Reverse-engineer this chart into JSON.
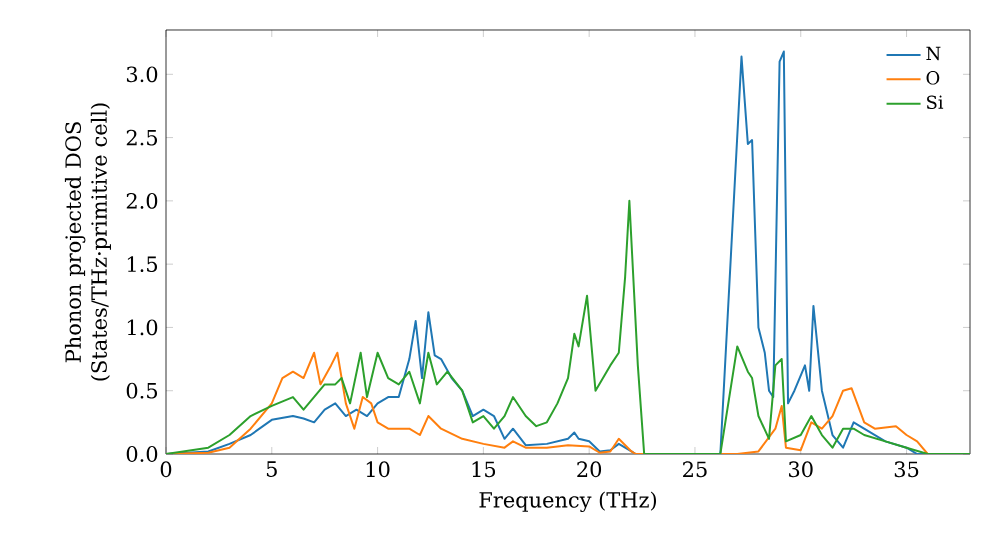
{
  "chart_data": {
    "type": "line",
    "xlabel": "Frequency (THz)",
    "ylabel": "Phonon projected DOS (States/THz·primitive cell)",
    "xlim": [
      0,
      38
    ],
    "ylim": [
      0,
      3.35
    ],
    "xticks": [
      0,
      5,
      10,
      15,
      20,
      25,
      30,
      35
    ],
    "yticks": [
      {
        "value": 0,
        "label": "0.0"
      },
      {
        "value": 0.5,
        "label": "0.5"
      },
      {
        "value": 1,
        "label": "1.0"
      },
      {
        "value": 1.5,
        "label": "1.5"
      },
      {
        "value": 2,
        "label": "2.0"
      },
      {
        "value": 2.5,
        "label": "2.5"
      },
      {
        "value": 3,
        "label": "3.0"
      }
    ],
    "grid": false,
    "legend": "top right",
    "marker": "none",
    "line_style": "solid",
    "series": [
      {
        "name": "N",
        "color": "#1f77b4",
        "x": [
          0,
          2,
          3,
          4,
          5,
          6,
          6.5,
          7,
          7.5,
          8,
          8.5,
          9,
          9.5,
          10,
          10.5,
          11,
          11.5,
          11.8,
          12.1,
          12.4,
          12.7,
          13,
          13.5,
          14,
          14.5,
          15,
          15.5,
          16,
          16.4,
          17,
          18,
          19,
          19.3,
          19.5,
          20,
          20.5,
          21,
          21.4,
          22,
          22.2,
          26.2,
          27.2,
          27.5,
          27.7,
          28,
          28.3,
          28.5,
          28.7,
          29,
          29.2,
          29.4,
          29.7,
          30.2,
          30.4,
          30.6,
          31,
          31.5,
          32,
          32.5,
          33,
          34,
          35,
          35.5,
          38
        ],
        "values": [
          0,
          0.02,
          0.08,
          0.15,
          0.27,
          0.3,
          0.28,
          0.25,
          0.35,
          0.4,
          0.3,
          0.35,
          0.3,
          0.4,
          0.45,
          0.45,
          0.75,
          1.05,
          0.6,
          1.12,
          0.78,
          0.75,
          0.6,
          0.5,
          0.3,
          0.35,
          0.3,
          0.12,
          0.2,
          0.07,
          0.08,
          0.12,
          0.17,
          0.12,
          0.1,
          0.02,
          0.03,
          0.08,
          0.02,
          0,
          0,
          3.14,
          2.45,
          2.48,
          1.0,
          0.8,
          0.5,
          0.45,
          3.1,
          3.18,
          0.4,
          0.5,
          0.7,
          0.5,
          1.17,
          0.5,
          0.15,
          0.05,
          0.25,
          0.2,
          0.1,
          0.05,
          0,
          0
        ]
      },
      {
        "name": "O",
        "color": "#ff7f0e",
        "x": [
          0,
          2,
          3,
          4,
          5,
          5.5,
          6,
          6.5,
          7,
          7.3,
          7.8,
          8.1,
          8.5,
          8.9,
          9.3,
          9.7,
          10,
          10.5,
          11,
          11.5,
          12,
          12.4,
          13,
          14,
          15,
          16,
          16.4,
          17,
          18,
          19,
          20,
          20.5,
          21,
          21.4,
          22,
          22.2,
          27,
          28,
          28.8,
          29.1,
          29.3,
          30,
          30.5,
          31,
          31.5,
          32,
          32.4,
          33,
          33.5,
          34.5,
          35,
          35.5,
          36,
          38
        ],
        "values": [
          0,
          0.01,
          0.05,
          0.2,
          0.4,
          0.6,
          0.65,
          0.6,
          0.8,
          0.55,
          0.7,
          0.8,
          0.4,
          0.2,
          0.45,
          0.4,
          0.25,
          0.2,
          0.2,
          0.2,
          0.15,
          0.3,
          0.2,
          0.12,
          0.08,
          0.05,
          0.1,
          0.05,
          0.05,
          0.07,
          0.06,
          0.01,
          0.02,
          0.12,
          0.02,
          0,
          0,
          0.02,
          0.2,
          0.38,
          0.05,
          0.03,
          0.25,
          0.2,
          0.3,
          0.5,
          0.52,
          0.25,
          0.2,
          0.22,
          0.15,
          0.1,
          0,
          0
        ]
      },
      {
        "name": "Si",
        "color": "#2ca02c",
        "x": [
          0,
          2,
          3,
          4,
          5,
          6,
          6.5,
          7,
          7.5,
          8,
          8.3,
          8.7,
          9.2,
          9.5,
          10,
          10.5,
          11,
          11.5,
          12,
          12.4,
          12.8,
          13.3,
          14,
          14.5,
          15,
          15.5,
          16,
          16.4,
          17,
          17.5,
          18,
          18.5,
          19,
          19.3,
          19.5,
          19.9,
          20.3,
          21,
          21.4,
          21.7,
          21.9,
          22.3,
          22.6,
          26.2,
          27,
          27.5,
          27.7,
          28,
          28.5,
          28.8,
          29.1,
          29.3,
          30,
          30.5,
          31,
          31.5,
          32,
          32.5,
          33,
          34,
          35,
          36,
          38
        ],
        "values": [
          0,
          0.05,
          0.15,
          0.3,
          0.38,
          0.45,
          0.35,
          0.45,
          0.55,
          0.55,
          0.6,
          0.4,
          0.8,
          0.45,
          0.8,
          0.6,
          0.55,
          0.65,
          0.4,
          0.8,
          0.55,
          0.65,
          0.5,
          0.25,
          0.3,
          0.2,
          0.3,
          0.45,
          0.3,
          0.22,
          0.25,
          0.4,
          0.6,
          0.95,
          0.85,
          1.25,
          0.5,
          0.7,
          0.8,
          1.4,
          2.0,
          0.7,
          0,
          0,
          0.85,
          0.65,
          0.6,
          0.3,
          0.12,
          0.7,
          0.75,
          0.1,
          0.15,
          0.3,
          0.15,
          0.05,
          0.2,
          0.2,
          0.15,
          0.1,
          0.05,
          0,
          0
        ]
      }
    ]
  }
}
